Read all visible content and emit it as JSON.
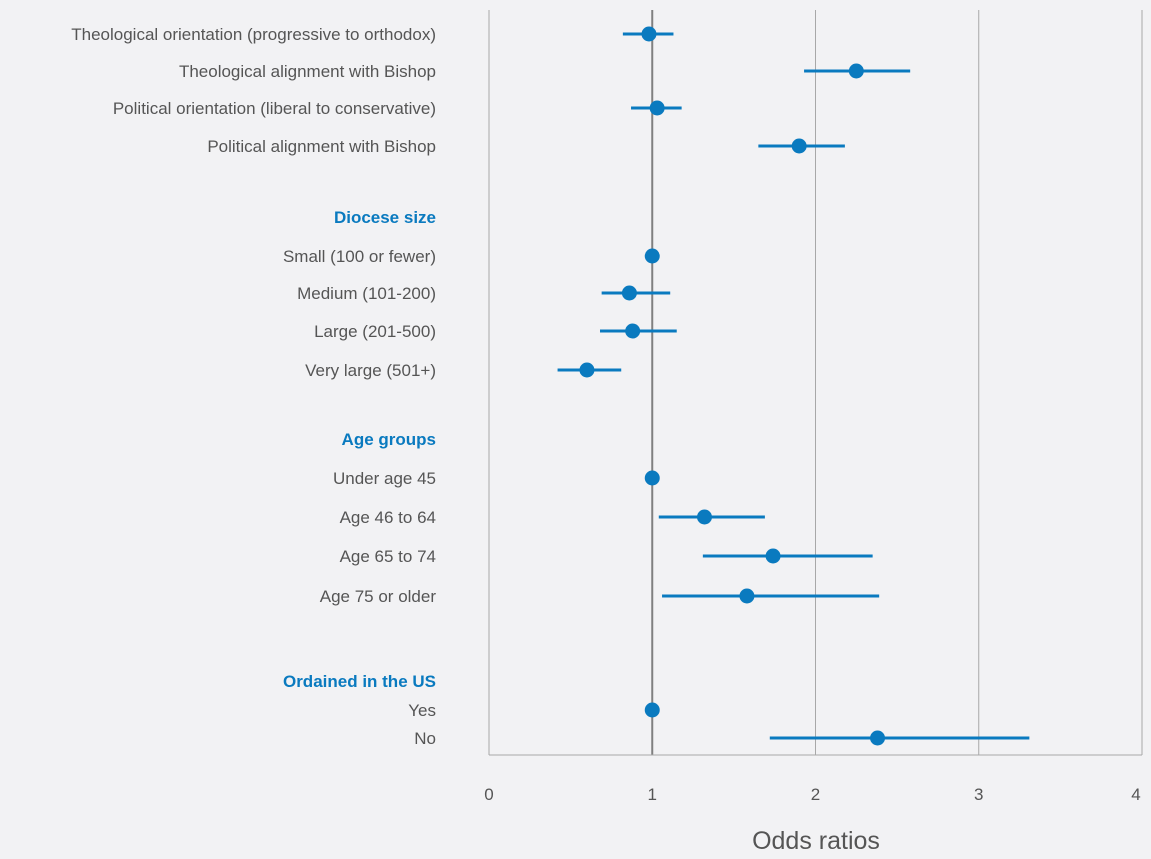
{
  "colors": {
    "background": "#f2f2f4",
    "marker": "#0a7abf",
    "group_label": "#0a7abf",
    "reference_line": "#808080",
    "grid": "#a8a8a8"
  },
  "chart_data": {
    "type": "scatter",
    "subtype": "forest-plot",
    "title": "",
    "xlabel": "Odds ratios",
    "xlim": [
      0,
      4
    ],
    "xticks": [
      0,
      1,
      2,
      3,
      4
    ],
    "reference_line": 1,
    "grid": "vertical",
    "rows": [
      {
        "label": "Theological orientation (progressive to orthodox)",
        "kind": "item",
        "or": 0.98,
        "lo": 0.82,
        "hi": 1.13
      },
      {
        "label": "Theological alignment with Bishop",
        "kind": "item",
        "or": 2.25,
        "lo": 1.93,
        "hi": 2.58
      },
      {
        "label": "Political orientation (liberal to conservative)",
        "kind": "item",
        "or": 1.03,
        "lo": 0.87,
        "hi": 1.18
      },
      {
        "label": "Political alignment with Bishop",
        "kind": "item",
        "or": 1.9,
        "lo": 1.65,
        "hi": 2.18
      },
      {
        "label": "Diocese size",
        "kind": "group"
      },
      {
        "label": "Small (100 or fewer)",
        "kind": "item",
        "or": 1.0
      },
      {
        "label": "Medium (101-200)",
        "kind": "item",
        "or": 0.86,
        "lo": 0.69,
        "hi": 1.11
      },
      {
        "label": "Large (201-500)",
        "kind": "item",
        "or": 0.88,
        "lo": 0.68,
        "hi": 1.15
      },
      {
        "label": "Very large (501+)",
        "kind": "item",
        "or": 0.6,
        "lo": 0.42,
        "hi": 0.81
      },
      {
        "label": "Age groups",
        "kind": "group"
      },
      {
        "label": "Under age 45",
        "kind": "item",
        "or": 1.0
      },
      {
        "label": "Age 46 to 64",
        "kind": "item",
        "or": 1.32,
        "lo": 1.04,
        "hi": 1.69
      },
      {
        "label": "Age 65 to 74",
        "kind": "item",
        "or": 1.74,
        "lo": 1.31,
        "hi": 2.35
      },
      {
        "label": "Age 75 or older",
        "kind": "item",
        "or": 1.58,
        "lo": 1.06,
        "hi": 2.39
      },
      {
        "label": "Ordained in the US",
        "kind": "group"
      },
      {
        "label": "Yes",
        "kind": "item",
        "or": 1.0
      },
      {
        "label": "No",
        "kind": "item",
        "or": 2.38,
        "lo": 1.72,
        "hi": 3.31
      }
    ]
  }
}
